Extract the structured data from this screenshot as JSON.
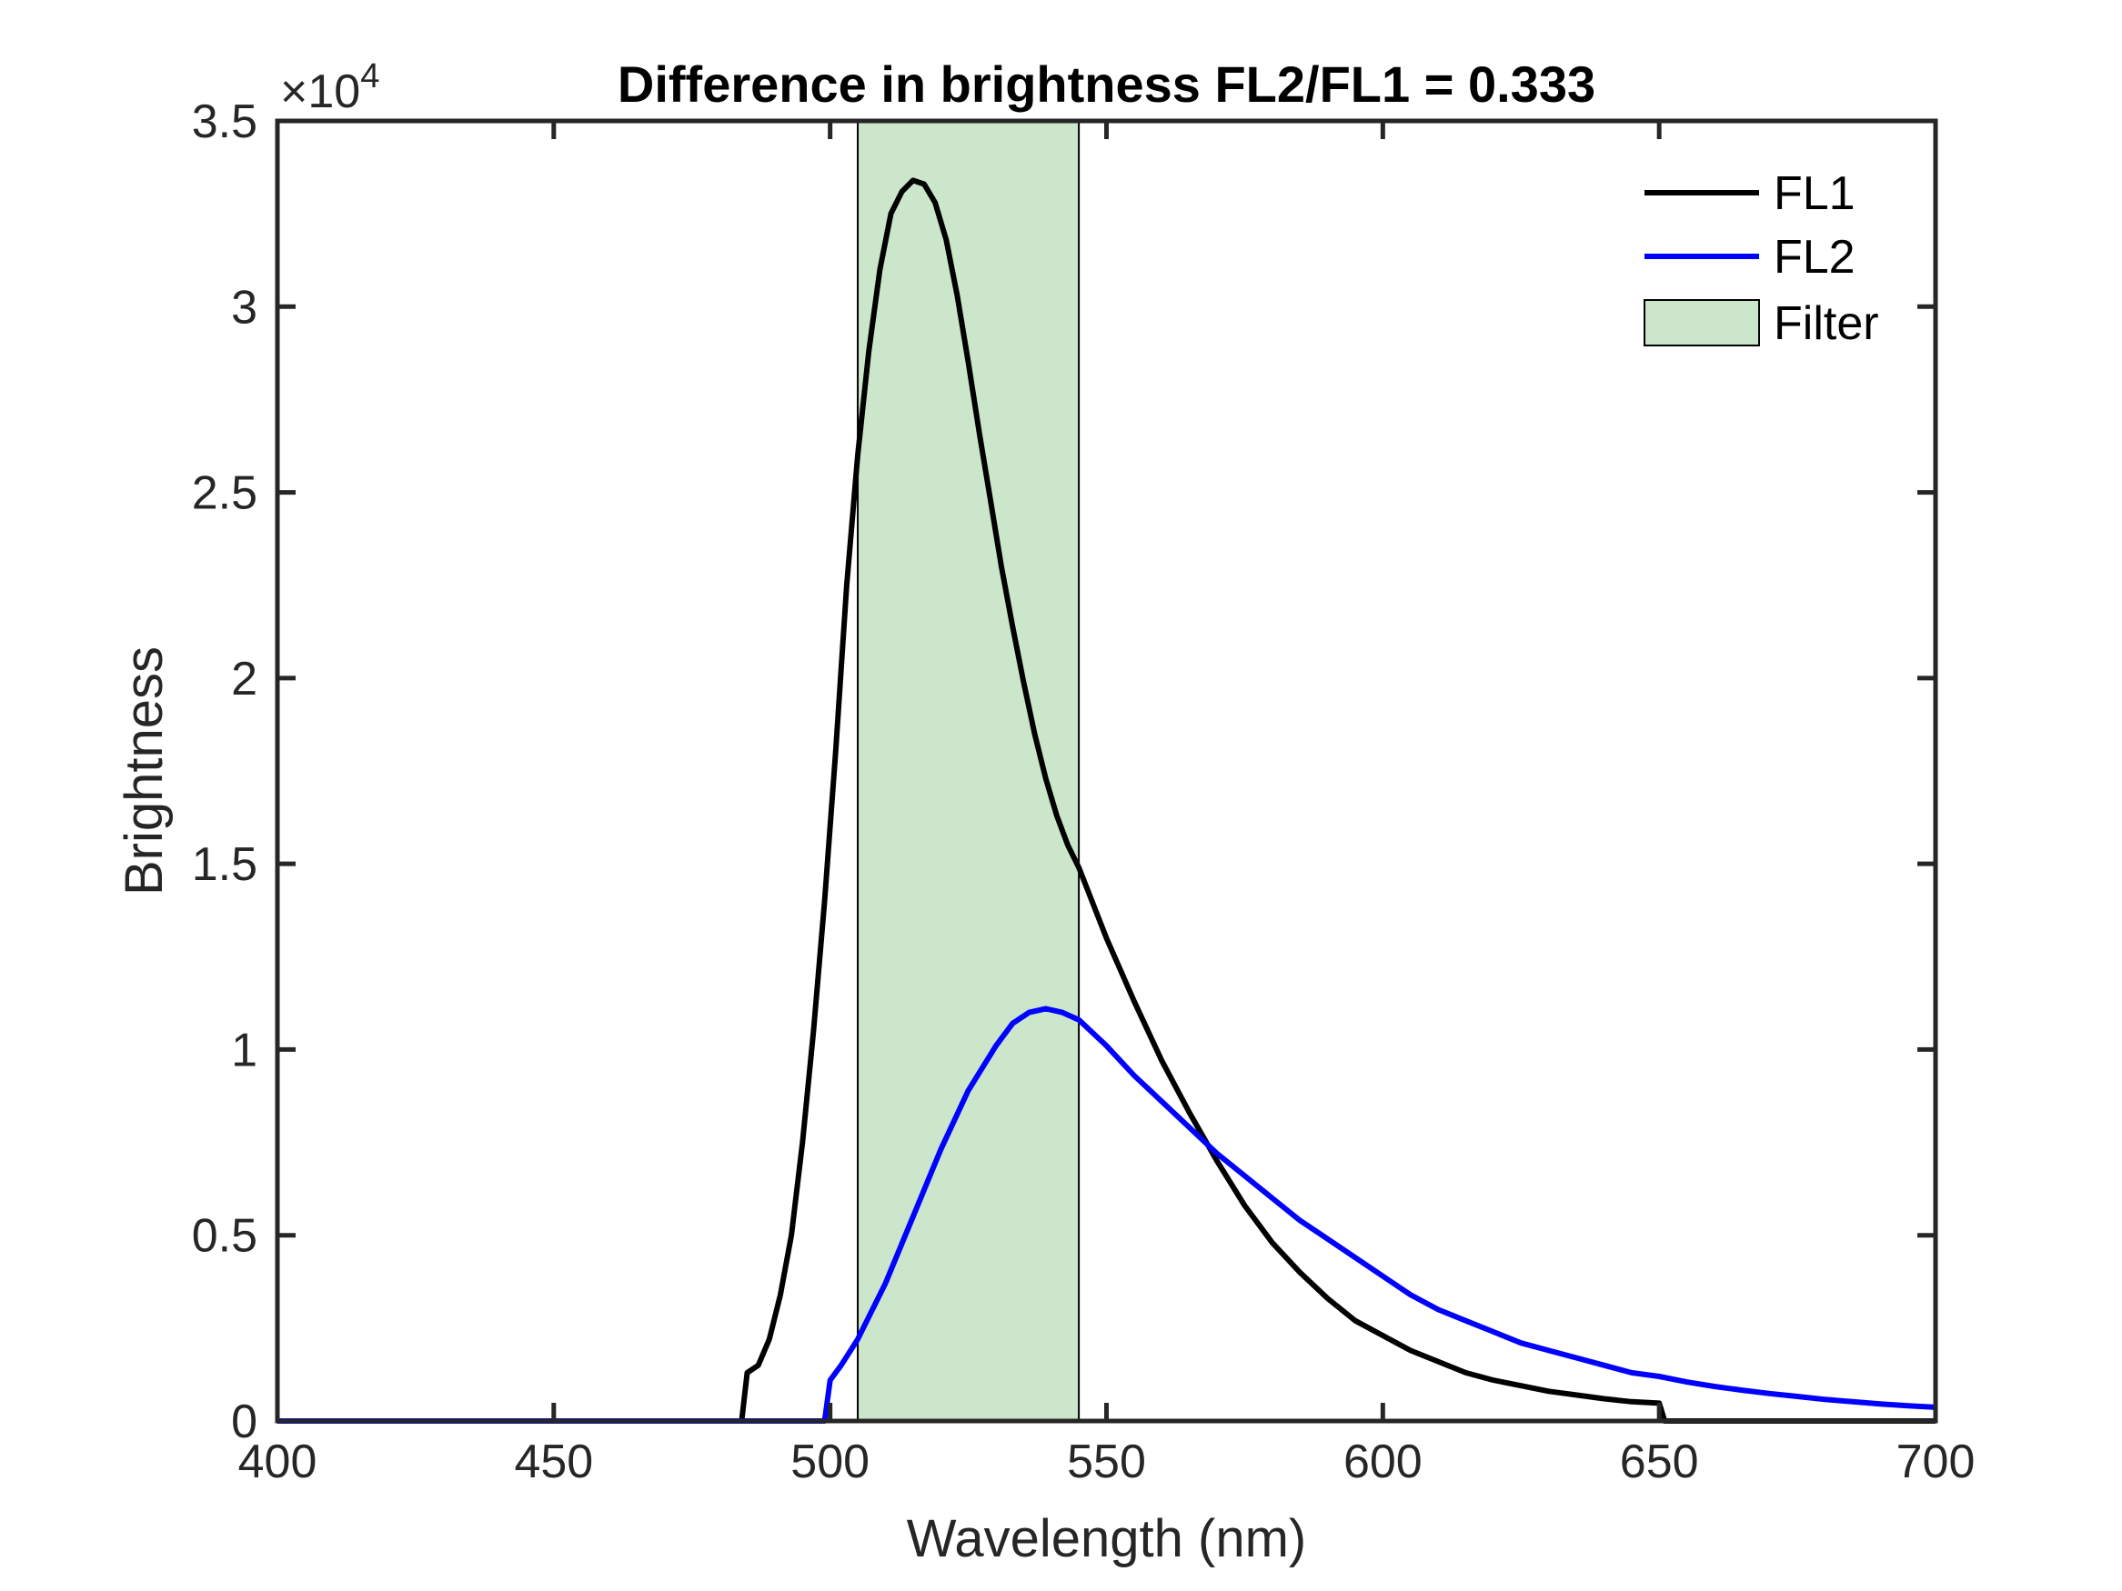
{
  "chart_data": {
    "type": "line",
    "title": "Difference in brightness FL2/FL1 = 0.333",
    "xlabel": "Wavelength (nm)",
    "ylabel": "Brightness",
    "xlim": [
      400,
      700
    ],
    "ylim": [
      0,
      35000
    ],
    "y_exponent_label": "×10",
    "y_exponent_power": "4",
    "x_ticks": [
      400,
      450,
      500,
      550,
      600,
      650,
      700
    ],
    "x_tick_labels": [
      "400",
      "450",
      "500",
      "550",
      "600",
      "650",
      "700"
    ],
    "y_ticks": [
      0,
      5000,
      10000,
      15000,
      20000,
      25000,
      30000,
      35000
    ],
    "y_tick_labels": [
      "0",
      "0.5",
      "1",
      "1.5",
      "2",
      "2.5",
      "3",
      "3.5"
    ],
    "grid": false,
    "legend_position": "top-right",
    "filter": {
      "name": "Filter",
      "x_start": 505,
      "x_end": 545,
      "color": "#cce6cc"
    },
    "series": [
      {
        "name": "FL1",
        "color": "#000000",
        "points": [
          [
            400,
            0
          ],
          [
            484,
            0
          ],
          [
            485,
            1300
          ],
          [
            487,
            1500
          ],
          [
            489,
            2200
          ],
          [
            491,
            3400
          ],
          [
            493,
            5000
          ],
          [
            495,
            7500
          ],
          [
            497,
            10500
          ],
          [
            499,
            14000
          ],
          [
            501,
            18000
          ],
          [
            503,
            22500
          ],
          [
            505,
            26000
          ],
          [
            507,
            28800
          ],
          [
            509,
            31000
          ],
          [
            511,
            32500
          ],
          [
            513,
            33100
          ],
          [
            515,
            33400
          ],
          [
            517,
            33300
          ],
          [
            519,
            32800
          ],
          [
            521,
            31800
          ],
          [
            523,
            30300
          ],
          [
            525,
            28500
          ],
          [
            527,
            26600
          ],
          [
            529,
            24800
          ],
          [
            531,
            23000
          ],
          [
            533,
            21400
          ],
          [
            535,
            19900
          ],
          [
            537,
            18500
          ],
          [
            539,
            17300
          ],
          [
            541,
            16300
          ],
          [
            543,
            15500
          ],
          [
            545,
            14900
          ],
          [
            550,
            13000
          ],
          [
            555,
            11300
          ],
          [
            560,
            9700
          ],
          [
            565,
            8300
          ],
          [
            570,
            7000
          ],
          [
            575,
            5800
          ],
          [
            580,
            4800
          ],
          [
            585,
            4000
          ],
          [
            590,
            3300
          ],
          [
            595,
            2700
          ],
          [
            600,
            2300
          ],
          [
            605,
            1900
          ],
          [
            610,
            1600
          ],
          [
            615,
            1300
          ],
          [
            620,
            1100
          ],
          [
            625,
            950
          ],
          [
            630,
            800
          ],
          [
            635,
            700
          ],
          [
            640,
            600
          ],
          [
            645,
            520
          ],
          [
            650,
            480
          ],
          [
            651,
            0
          ],
          [
            700,
            0
          ]
        ]
      },
      {
        "name": "FL2",
        "color": "#0000ff",
        "points": [
          [
            400,
            0
          ],
          [
            499,
            0
          ],
          [
            500,
            1100
          ],
          [
            502,
            1500
          ],
          [
            505,
            2200
          ],
          [
            510,
            3700
          ],
          [
            515,
            5500
          ],
          [
            520,
            7300
          ],
          [
            525,
            8900
          ],
          [
            530,
            10100
          ],
          [
            533,
            10700
          ],
          [
            536,
            11000
          ],
          [
            539,
            11100
          ],
          [
            542,
            11000
          ],
          [
            545,
            10800
          ],
          [
            550,
            10100
          ],
          [
            555,
            9300
          ],
          [
            560,
            8600
          ],
          [
            565,
            7900
          ],
          [
            570,
            7200
          ],
          [
            575,
            6600
          ],
          [
            580,
            6000
          ],
          [
            585,
            5400
          ],
          [
            590,
            4900
          ],
          [
            595,
            4400
          ],
          [
            600,
            3900
          ],
          [
            605,
            3400
          ],
          [
            610,
            3000
          ],
          [
            615,
            2700
          ],
          [
            620,
            2400
          ],
          [
            625,
            2100
          ],
          [
            630,
            1900
          ],
          [
            635,
            1700
          ],
          [
            640,
            1500
          ],
          [
            645,
            1300
          ],
          [
            650,
            1200
          ],
          [
            655,
            1050
          ],
          [
            660,
            930
          ],
          [
            665,
            830
          ],
          [
            670,
            740
          ],
          [
            675,
            660
          ],
          [
            680,
            580
          ],
          [
            685,
            520
          ],
          [
            690,
            460
          ],
          [
            695,
            410
          ],
          [
            700,
            370
          ]
        ]
      }
    ]
  }
}
